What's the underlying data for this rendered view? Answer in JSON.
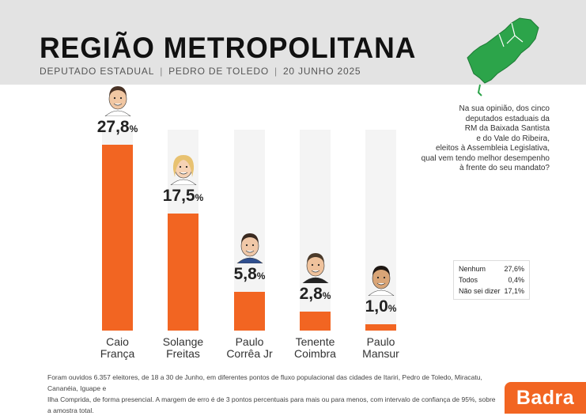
{
  "header": {
    "title": "REGIÃO METROPOLITANA",
    "subtitle_parts": [
      "DEPUTADO ESTADUAL",
      "PEDRO DE TOLEDO",
      "20 JUNHO 2025"
    ]
  },
  "question": [
    "Na sua opinião, dos cinco",
    "deputados estaduais da",
    "RM da Baixada Santista",
    "e do Vale do Ribeira,",
    "eleitos à Assembleia Legislativa,",
    "qual vem tendo melhor desempenho",
    "à frente do seu mandato?"
  ],
  "chart_data": {
    "type": "bar",
    "title": "REGIÃO METROPOLITANA",
    "categories": [
      [
        "Caio",
        "França"
      ],
      [
        "Solange",
        "Freitas"
      ],
      [
        "Paulo",
        "Corrêa Jr"
      ],
      [
        "Tenente",
        "Coimbra"
      ],
      [
        "Paulo",
        "Mansur"
      ]
    ],
    "values": [
      27.8,
      17.5,
      5.8,
      2.8,
      1.0
    ],
    "value_labels": [
      "27,8",
      "17,5",
      "5,8",
      "2,8",
      "1,0"
    ],
    "percent_symbol": "%",
    "ylim": [
      0,
      30
    ],
    "bar_color": "#f26522",
    "others": [
      {
        "label": "Nenhum",
        "value": "27,6%"
      },
      {
        "label": "Todos",
        "value": "0,4%"
      },
      {
        "label": "Não sei dizer",
        "value": "17,1%"
      }
    ]
  },
  "footnote": [
    "Foram ouvidos 6.357 eleitores, de 18 a 30 de Junho, em diferentes pontos de fluxo populacional das cidades de Itariri, Pedro de Toledo, Miracatu, Cananéia, Iguape e",
    "Ilha Comprida, de forma presencial. A margem de erro é de 3 pontos percentuais para mais ou para menos, com intervalo de confiança de 95%, sobre a amostra total."
  ],
  "brand": {
    "name": "Badra",
    "color": "#f26522"
  }
}
